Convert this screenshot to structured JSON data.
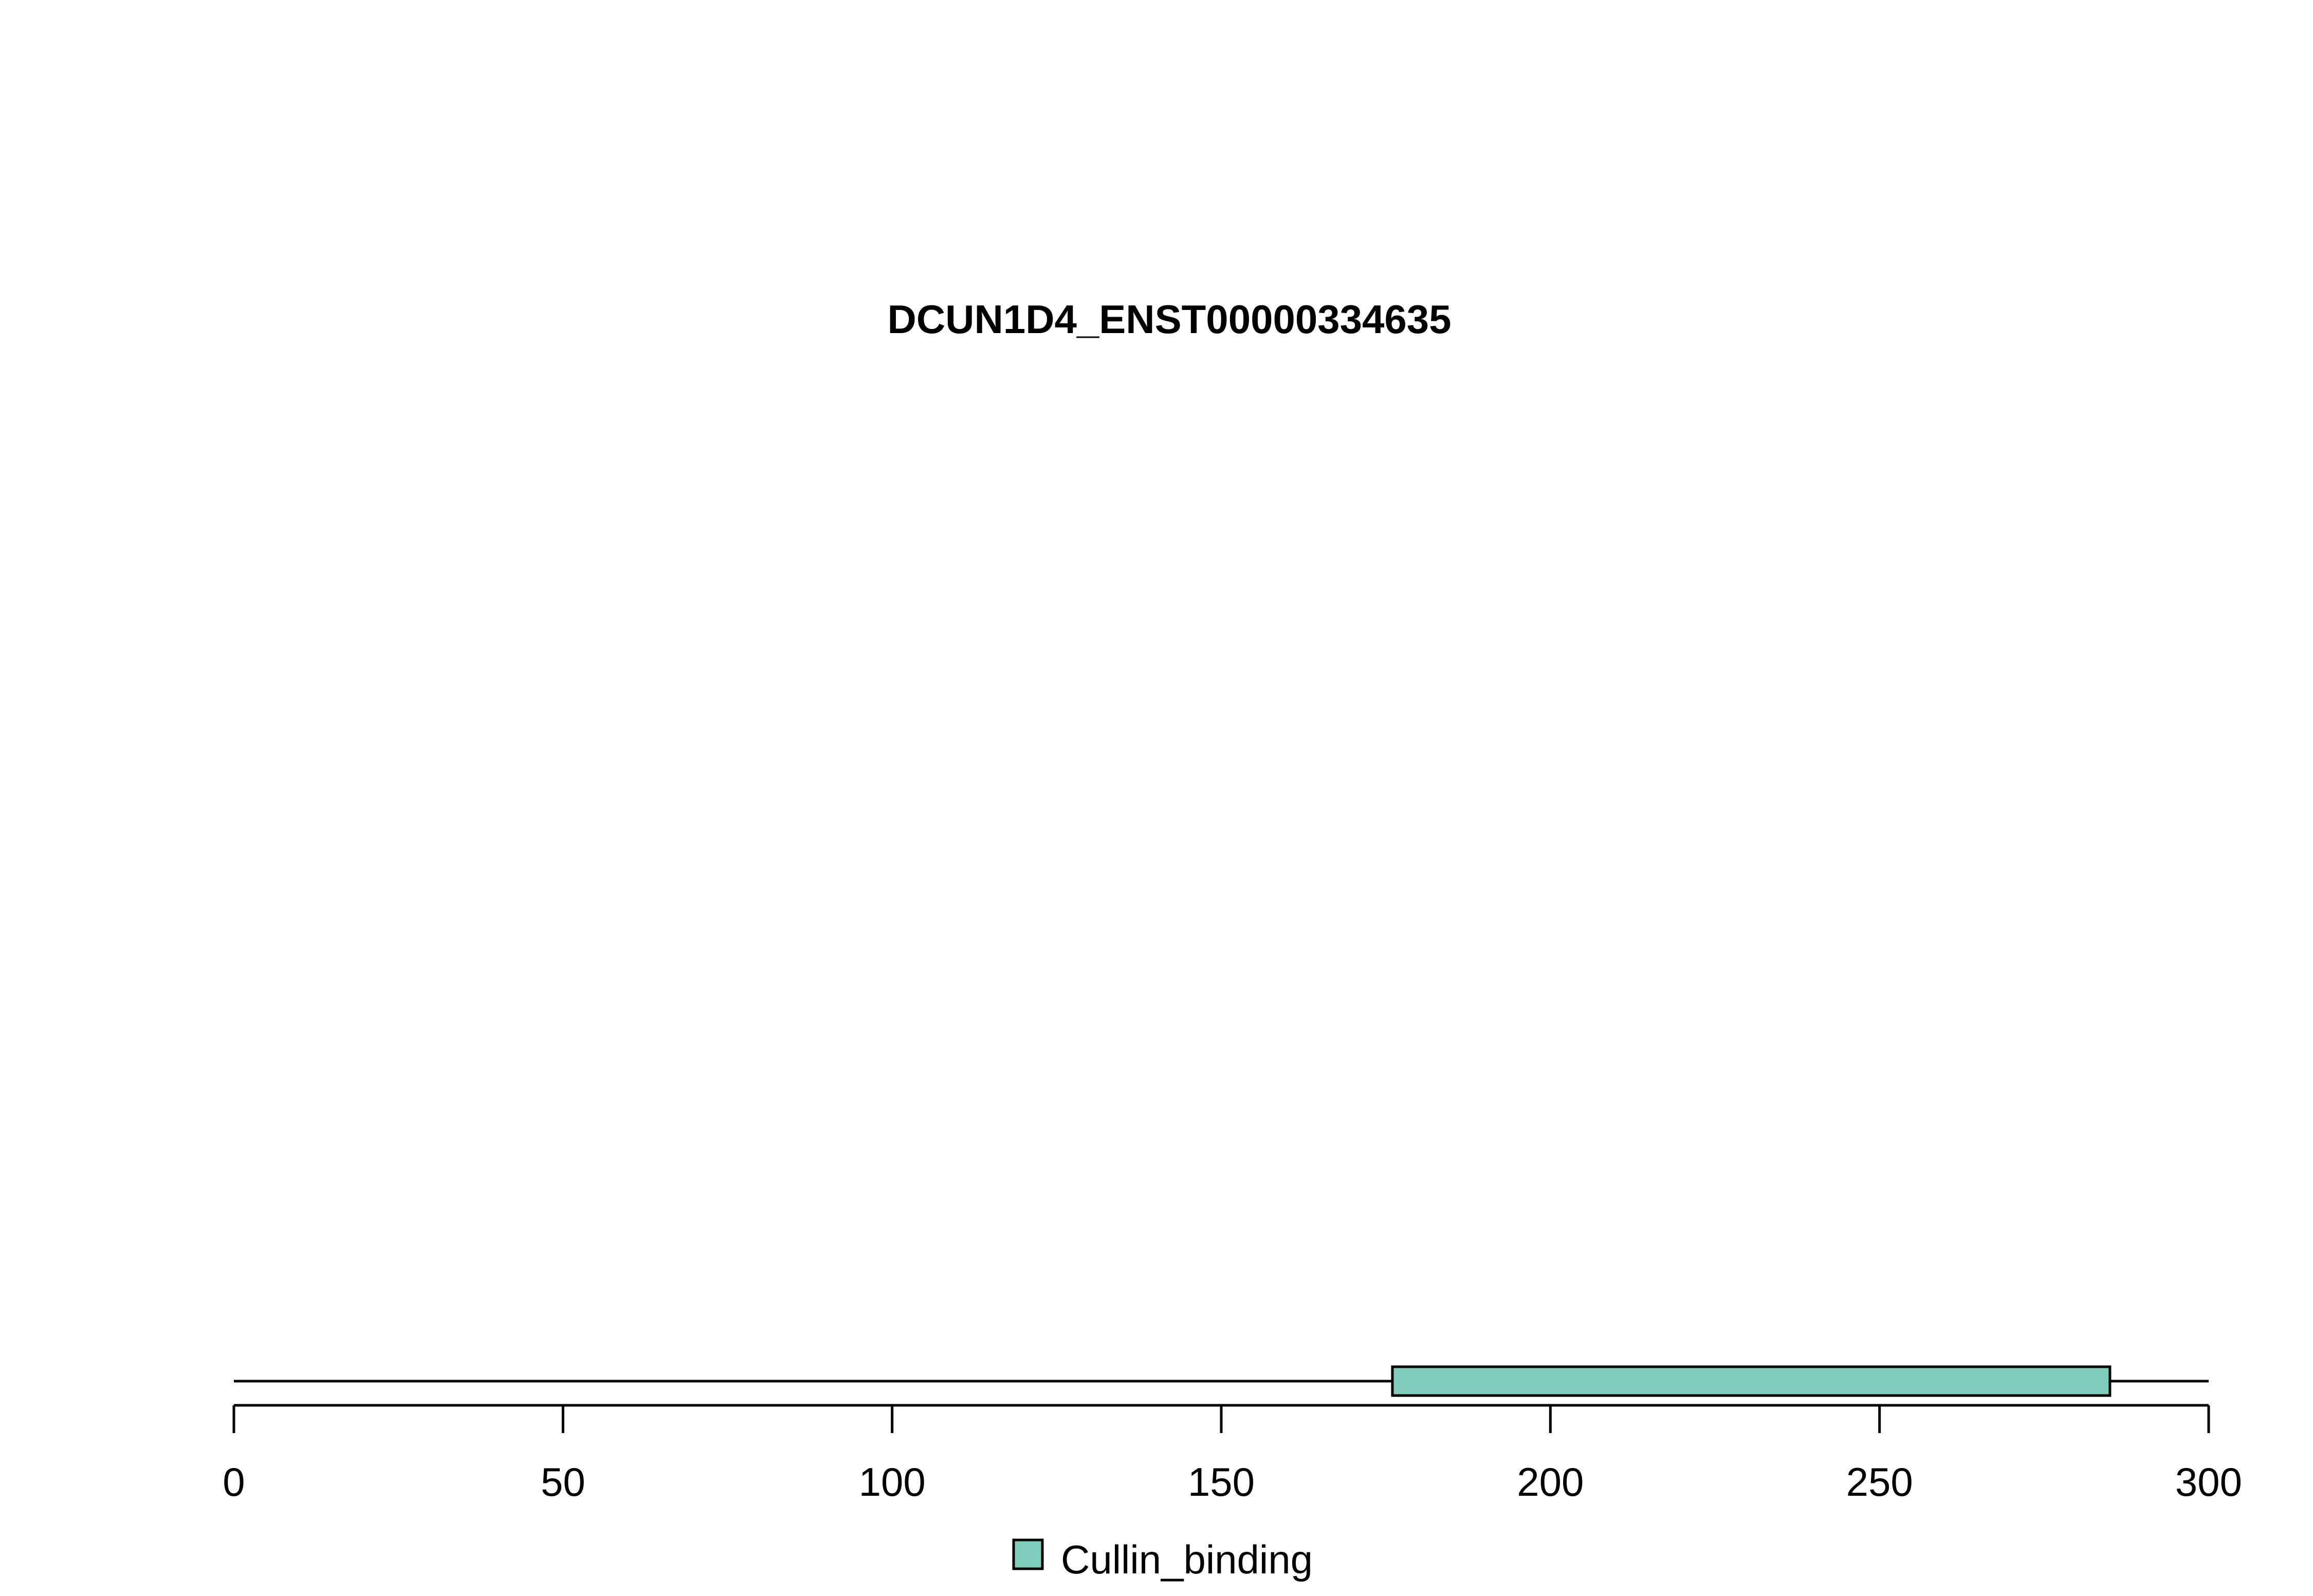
{
  "chart_data": {
    "type": "bar",
    "title": "DCUN1D4_ENST00000334635",
    "protein_length": 300,
    "xlim": [
      0,
      300
    ],
    "x_ticks": [
      0,
      50,
      100,
      150,
      200,
      250,
      300
    ],
    "x_tick_labels": [
      "0",
      "50",
      "100",
      "150",
      "200",
      "250",
      "300"
    ],
    "domains": [
      {
        "name": "Cullin_binding",
        "start": 176,
        "end": 285,
        "color": "#7FCDBB"
      }
    ],
    "legend": {
      "placement": "bottom-center",
      "entries": [
        {
          "label": "Cullin_binding",
          "color": "#7FCDBB"
        }
      ]
    },
    "grid": false
  }
}
